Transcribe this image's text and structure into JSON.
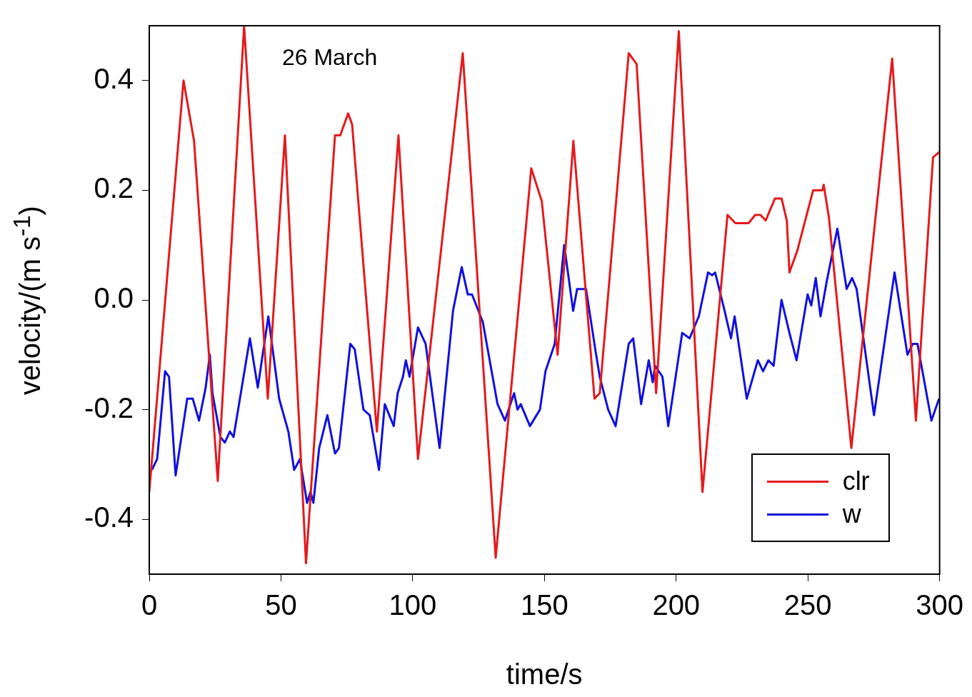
{
  "chart_data": {
    "type": "line",
    "xlabel": "time/s",
    "ylabel": "velocity/(m s$^{-1}$)",
    "annotations": [
      "26 March"
    ],
    "legend": "bottom right",
    "marker": "none",
    "line_style": "solid",
    "xlim": [
      0,
      300
    ],
    "xticks": [
      0,
      50,
      100,
      150,
      200,
      250,
      300
    ],
    "ylim": [
      -0.5,
      0.5
    ],
    "yticks": [
      {
        "value": -0.4,
        "label": "-0.4"
      },
      {
        "value": -0.2,
        "label": "-0.2"
      },
      {
        "value": 0,
        "label": "0.0"
      },
      {
        "value": 0.2,
        "label": "0.2"
      },
      {
        "value": 0.4,
        "label": "0.4"
      }
    ],
    "series": [
      {
        "name": "clr",
        "color": "#e41a1c",
        "x": [
          0,
          13,
          17,
          26,
          36,
          45,
          51.5,
          59.5,
          70.5,
          72.5,
          75.5,
          77,
          86.4,
          94.6,
          102,
          119,
          131.5,
          145,
          149,
          155,
          161,
          169,
          171,
          182,
          185,
          192.4,
          201,
          210,
          219.5,
          222.5,
          227.5,
          230,
          232,
          234,
          237.5,
          240,
          242,
          243,
          246,
          252,
          255.5,
          256,
          258,
          266.5,
          282,
          291,
          297.5,
          300
        ],
        "values": [
          -0.35,
          0.4,
          0.29,
          -0.33,
          0.5,
          -0.18,
          0.3,
          -0.48,
          0.3,
          0.3,
          0.34,
          0.32,
          -0.24,
          0.3,
          -0.29,
          0.45,
          -0.47,
          0.24,
          0.18,
          -0.1,
          0.29,
          -0.18,
          -0.17,
          0.45,
          0.43,
          -0.17,
          0.49,
          -0.35,
          0.155,
          0.14,
          0.14,
          0.155,
          0.155,
          0.145,
          0.185,
          0.185,
          0.145,
          0.05,
          0.09,
          0.2,
          0.2,
          0.21,
          0.15,
          -0.27,
          0.44,
          -0.22,
          0.26,
          0.27
        ]
      },
      {
        "name": "w",
        "color": "#1010e0",
        "x": [
          1,
          3,
          6,
          7.5,
          10,
          14.4,
          16.5,
          18.9,
          21.4,
          23,
          24,
          27,
          28.7,
          30.6,
          32,
          38.2,
          41.2,
          45.2,
          49.3,
          52.8,
          55,
          57.2,
          59.9,
          61.2,
          62.3,
          64.5,
          67.6,
          70.5,
          72,
          76.3,
          78,
          81.3,
          83.7,
          87.2,
          89.4,
          92.8,
          94.3,
          96.3,
          97.4,
          98.8,
          102,
          104.9,
          110.2,
          115.3,
          118.6,
          120.9,
          122.5,
          126.6,
          132.2,
          135,
          138.5,
          139.8,
          141,
          144.5,
          148.3,
          150.4,
          153.9,
          157.5,
          160.9,
          162.4,
          165.8,
          169.3,
          171,
          174.2,
          177,
          182,
          183.7,
          186.7,
          189.6,
          191.1,
          192,
          194.8,
          197,
          202.3,
          205.1,
          208.6,
          212.1,
          213.7,
          214.8,
          218.4,
          220.8,
          222.2,
          226.8,
          231,
          233,
          235,
          237,
          240,
          243,
          245.7,
          249.9,
          251.3,
          253,
          254.8,
          257.2,
          261.2,
          264.7,
          266.8,
          268.5,
          275.1,
          282.9,
          287.8,
          289.8,
          291.6,
          296.9,
          299.8
        ],
        "values": [
          -0.31,
          -0.29,
          -0.13,
          -0.14,
          -0.32,
          -0.18,
          -0.18,
          -0.22,
          -0.16,
          -0.1,
          -0.17,
          -0.25,
          -0.26,
          -0.24,
          -0.25,
          -0.07,
          -0.16,
          -0.03,
          -0.18,
          -0.24,
          -0.31,
          -0.29,
          -0.37,
          -0.35,
          -0.37,
          -0.27,
          -0.21,
          -0.28,
          -0.27,
          -0.08,
          -0.09,
          -0.2,
          -0.21,
          -0.31,
          -0.19,
          -0.23,
          -0.17,
          -0.14,
          -0.11,
          -0.14,
          -0.05,
          -0.08,
          -0.27,
          -0.02,
          0.06,
          0.01,
          0.01,
          -0.04,
          -0.19,
          -0.22,
          -0.17,
          -0.2,
          -0.19,
          -0.23,
          -0.2,
          -0.13,
          -0.08,
          0.1,
          -0.02,
          0.02,
          0.02,
          -0.09,
          -0.14,
          -0.2,
          -0.23,
          -0.08,
          -0.07,
          -0.19,
          -0.11,
          -0.15,
          -0.12,
          -0.14,
          -0.23,
          -0.06,
          -0.07,
          -0.03,
          0.05,
          0.045,
          0.05,
          -0.02,
          -0.07,
          -0.03,
          -0.18,
          -0.11,
          -0.13,
          -0.11,
          -0.12,
          0,
          -0.06,
          -0.11,
          0.01,
          -0.01,
          0.04,
          -0.03,
          0.035,
          0.13,
          0.02,
          0.04,
          0.02,
          -0.21,
          0.05,
          -0.1,
          -0.08,
          -0.08,
          -0.22,
          -0.18
        ]
      }
    ]
  }
}
